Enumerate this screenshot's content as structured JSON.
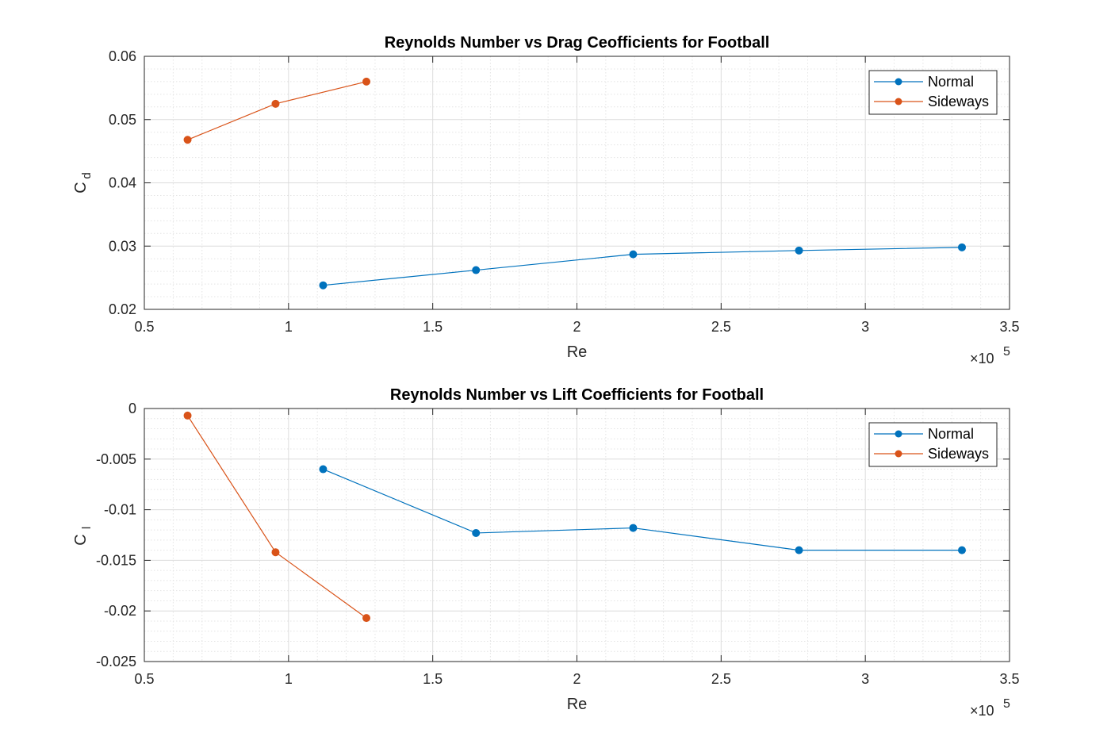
{
  "chart_data": [
    {
      "type": "line",
      "title": "Reynolds Number vs Drag Ceofficients for Football",
      "xlabel": "Re",
      "ylabel_main": "C",
      "ylabel_sub": "d",
      "x_exponent": "×10",
      "x_exponent_power": "5",
      "xlim": [
        50000,
        350000
      ],
      "ylim": [
        0.02,
        0.06
      ],
      "xticks": [
        50000,
        100000,
        150000,
        200000,
        250000,
        300000,
        350000
      ],
      "xtick_labels": [
        "0.5",
        "1",
        "1.5",
        "2",
        "2.5",
        "3",
        "3.5"
      ],
      "yticks": [
        0.02,
        0.03,
        0.04,
        0.05,
        0.06
      ],
      "ytick_labels": [
        "0.02",
        "0.03",
        "0.04",
        "0.05",
        "0.06"
      ],
      "grid": true,
      "minor_grid": true,
      "legend_position": "top-right",
      "series": [
        {
          "name": "Normal",
          "color": "#0072BD",
          "x": [
            112000,
            165000,
            219500,
            277000,
            333500
          ],
          "y": [
            0.0238,
            0.0262,
            0.0287,
            0.0293,
            0.0298
          ]
        },
        {
          "name": "Sideways",
          "color": "#D95319",
          "x": [
            65000,
            95500,
            127000
          ],
          "y": [
            0.0468,
            0.0525,
            0.056
          ]
        }
      ]
    },
    {
      "type": "line",
      "title": "Reynolds Number vs Lift Coefficients for Football",
      "xlabel": "Re",
      "ylabel_main": "C",
      "ylabel_sub": "l",
      "x_exponent": "×10",
      "x_exponent_power": "5",
      "xlim": [
        50000,
        350000
      ],
      "ylim": [
        -0.025,
        0
      ],
      "xticks": [
        50000,
        100000,
        150000,
        200000,
        250000,
        300000,
        350000
      ],
      "xtick_labels": [
        "0.5",
        "1",
        "1.5",
        "2",
        "2.5",
        "3",
        "3.5"
      ],
      "yticks": [
        -0.025,
        -0.02,
        -0.015,
        -0.01,
        -0.005,
        0
      ],
      "ytick_labels": [
        "-0.025",
        "-0.02",
        "-0.015",
        "-0.01",
        "-0.005",
        "0"
      ],
      "grid": true,
      "minor_grid": true,
      "legend_position": "top-right",
      "series": [
        {
          "name": "Normal",
          "color": "#0072BD",
          "x": [
            112000,
            165000,
            219500,
            277000,
            333500
          ],
          "y": [
            -0.006,
            -0.0123,
            -0.0118,
            -0.014,
            -0.014
          ]
        },
        {
          "name": "Sideways",
          "color": "#D95319",
          "x": [
            65000,
            95500,
            127000
          ],
          "y": [
            -0.0007,
            -0.0142,
            -0.0207
          ]
        }
      ]
    }
  ]
}
